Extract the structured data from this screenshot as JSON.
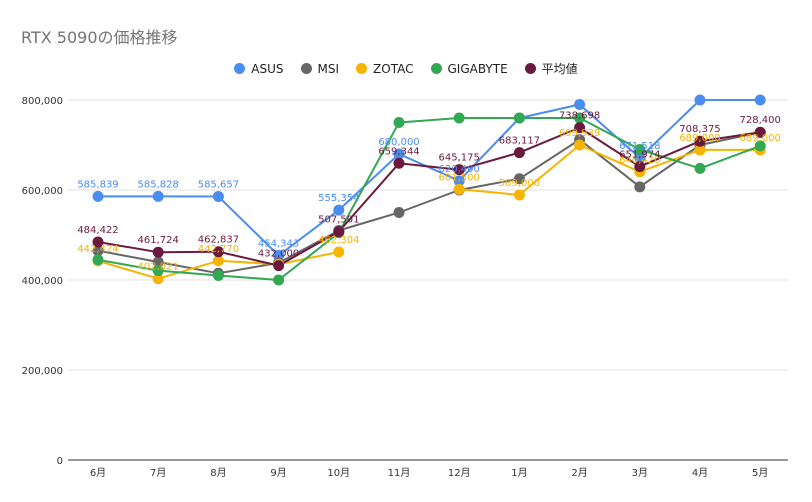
{
  "chart_data": {
    "type": "line",
    "title": "RTX 5090の価格推移",
    "categories": [
      "6月",
      "7月",
      "8月",
      "9月",
      "10月",
      "11月",
      "12月",
      "1月",
      "2月",
      "3月",
      "4月",
      "5月"
    ],
    "ylim": [
      0,
      800000
    ],
    "yticks": [
      0,
      200000,
      400000,
      600000,
      800000
    ],
    "ytick_labels": [
      "0",
      "200,000",
      "400,000",
      "600,000",
      "800,000"
    ],
    "grid": true,
    "legend_position": "top",
    "series": [
      {
        "name": "ASUS",
        "color": "#4a8df0",
        "values": [
          585839,
          585828,
          585657,
          454343,
          555354,
          680000,
          620400,
          760000,
          790000,
          671518,
          800000,
          800000
        ],
        "labels": [
          "585,839",
          "585,828",
          "585,657",
          "454,343",
          "555,354",
          "680,000",
          "620,400",
          "",
          "",
          "671,518",
          "",
          ""
        ]
      },
      {
        "name": "MSI",
        "color": "#666666",
        "values": [
          465000,
          440000,
          415000,
          438000,
          510000,
          550000,
          600000,
          625000,
          712000,
          607000,
          700000,
          728000
        ],
        "labels": [
          "",
          "",
          "",
          "",
          "",
          "",
          "",
          "",
          "",
          "",
          "",
          ""
        ]
      },
      {
        "name": "ZOTAC",
        "color": "#f6b400",
        "values": [
          442424,
          402821,
          442770,
          435000,
          462304,
          null,
          601500,
          589000,
          699939,
          640420,
          689000,
          689000
        ],
        "labels": [
          "442,424",
          "402,821",
          "442,770",
          "",
          "462,304",
          "",
          "601,500",
          "589,000",
          "699,939",
          "640,420",
          "689,000",
          "689,000"
        ]
      },
      {
        "name": "GIGABYTE",
        "color": "#33a853",
        "values": [
          445000,
          421000,
          410000,
          400000,
          505000,
          750000,
          760000,
          760000,
          760000,
          690000,
          648000,
          698000
        ],
        "labels": [
          "",
          "",
          "",
          "",
          "",
          "",
          "",
          "",
          "",
          "",
          "",
          ""
        ]
      },
      {
        "name": "平均値",
        "color": "#6b1a3f",
        "values": [
          484422,
          461724,
          462837,
          432000,
          507501,
          659344,
          645175,
          683117,
          738698,
          651974,
          708375,
          728400
        ],
        "labels": [
          "484,422",
          "461,724",
          "462,837",
          "432,000",
          "507,501",
          "659,344",
          "645,175",
          "683,117",
          "738,698",
          "651,974",
          "708,375",
          "728,400"
        ]
      }
    ]
  }
}
